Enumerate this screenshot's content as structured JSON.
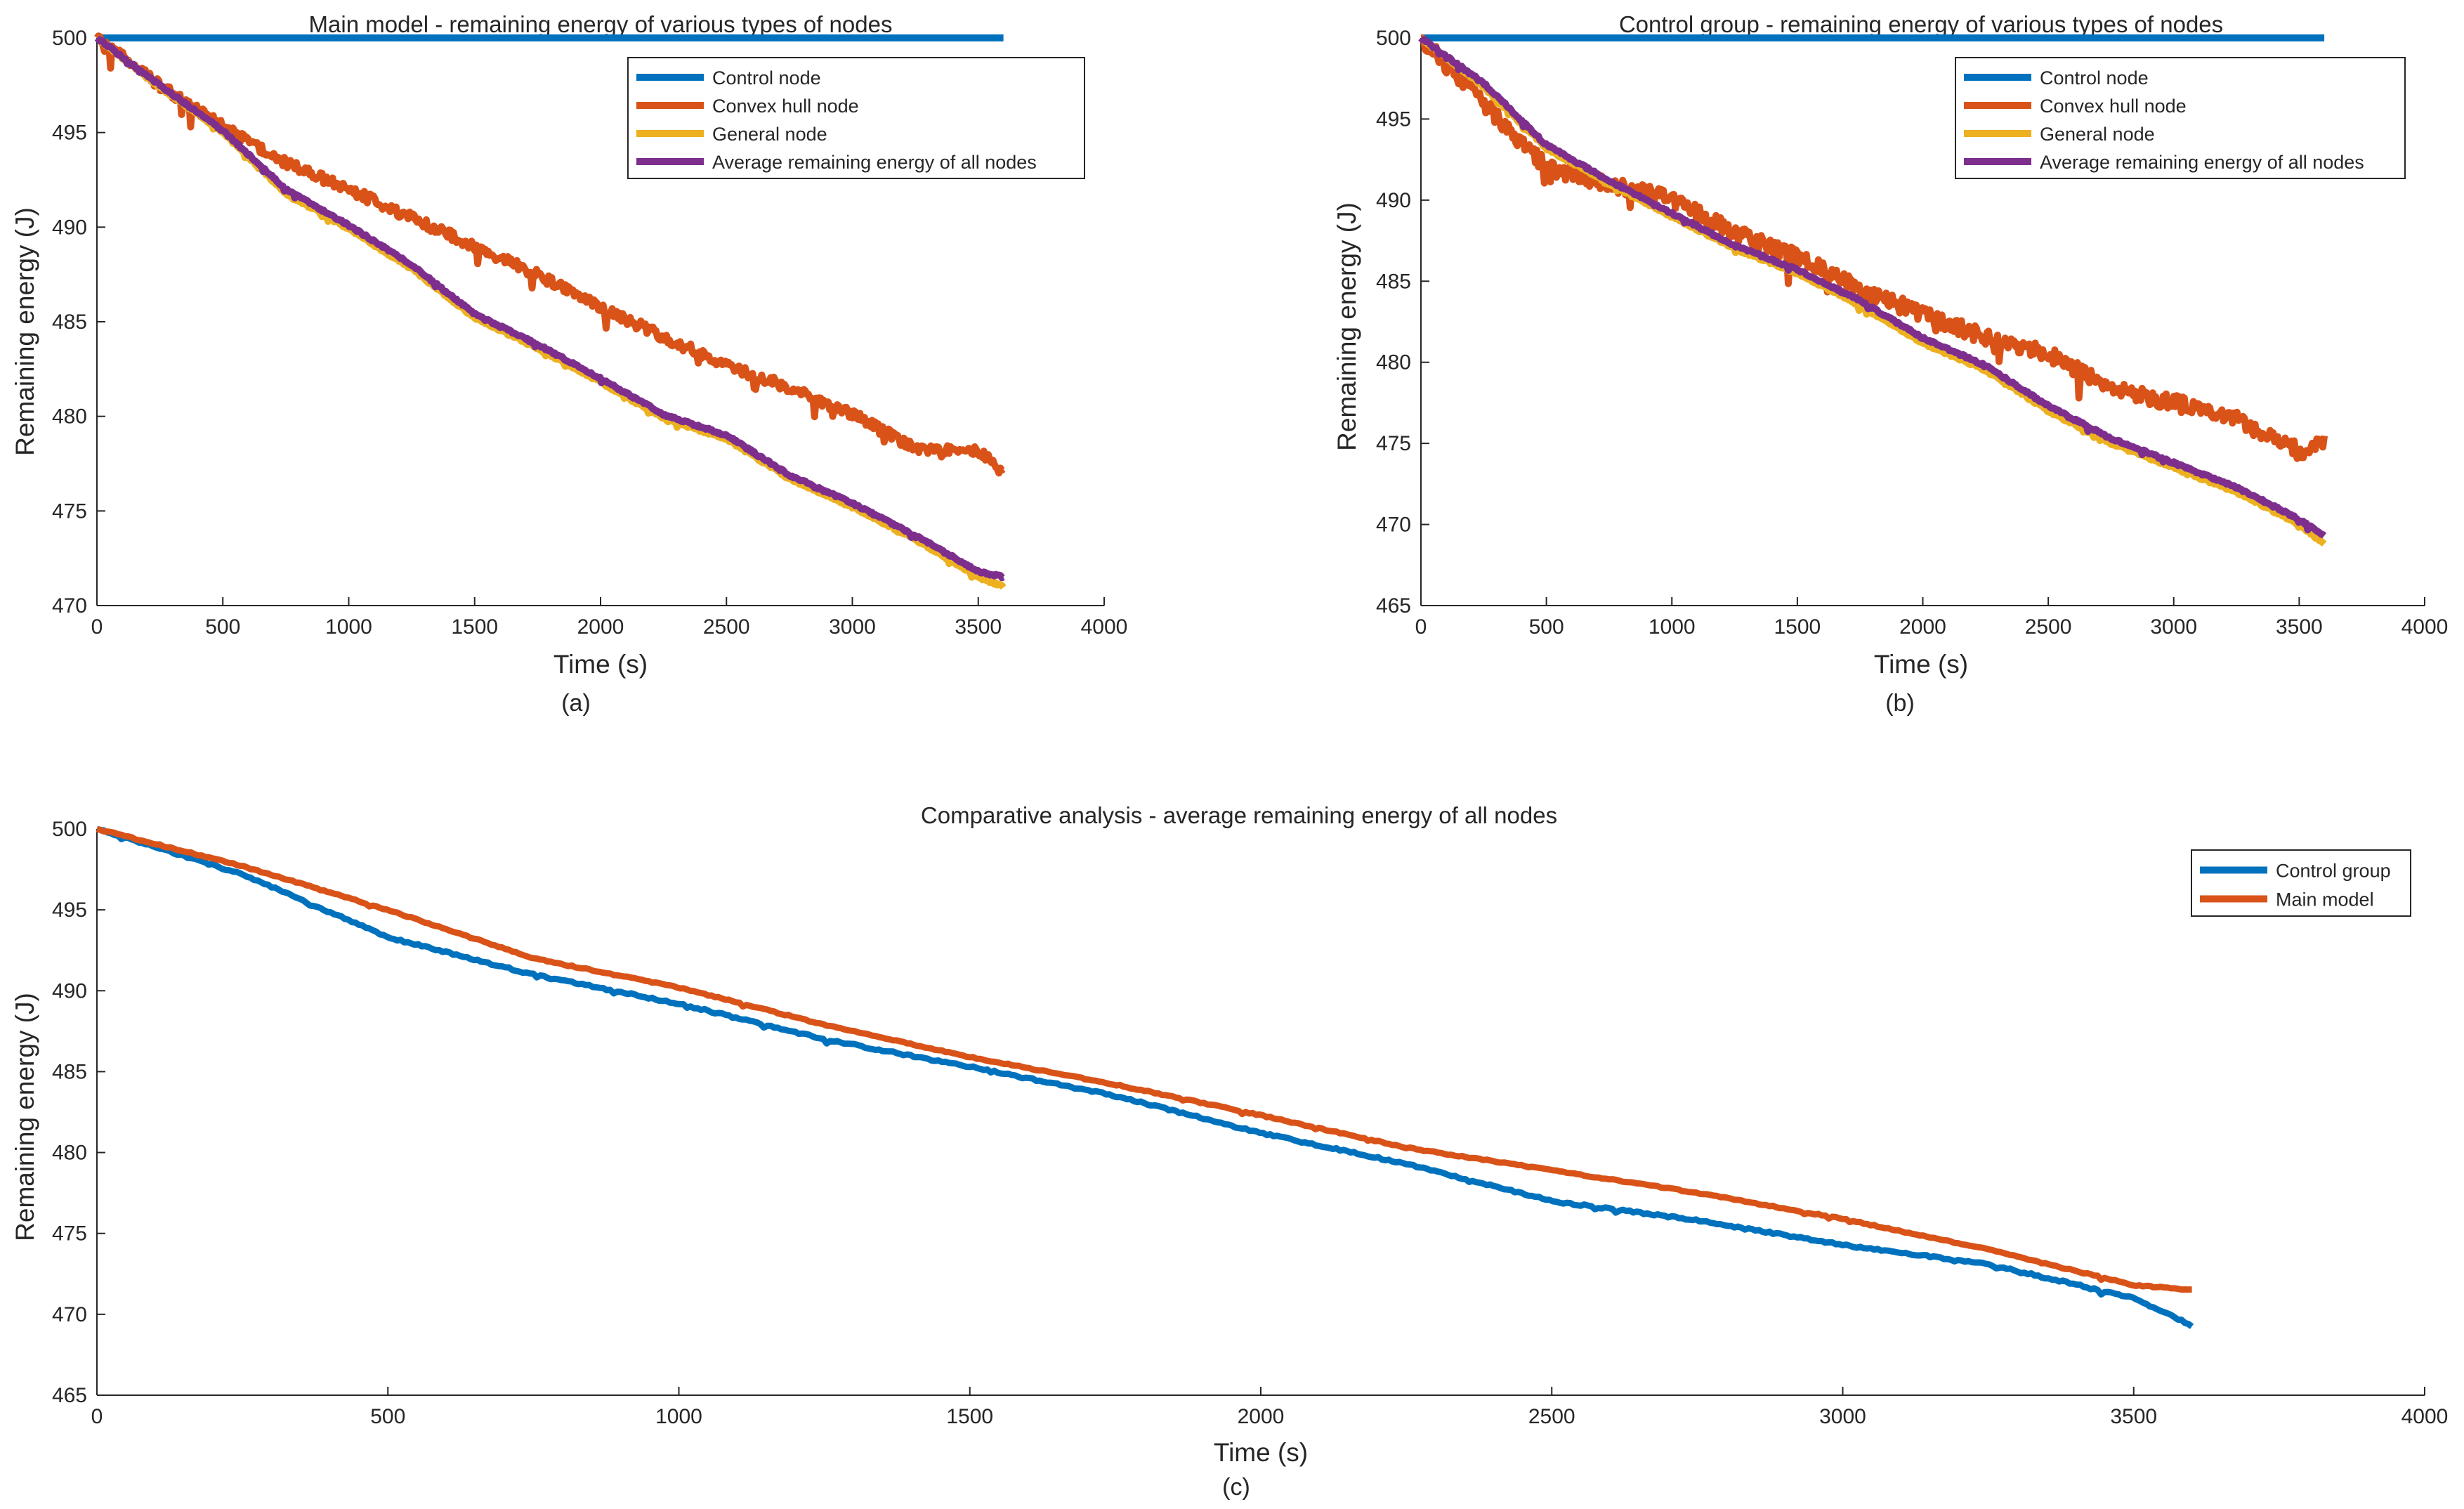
{
  "chart_data": [
    {
      "panel": "a",
      "type": "line",
      "title": "Main model - remaining energy of various types of nodes",
      "xlabel": "Time (s)",
      "ylabel": "Remaining energy (J)",
      "caption": "(a)",
      "xlim": [
        0,
        4000
      ],
      "ylim": [
        470,
        500
      ],
      "xticks": [
        0,
        500,
        1000,
        1500,
        2000,
        2500,
        3000,
        3500,
        4000
      ],
      "yticks": [
        470,
        475,
        480,
        485,
        490,
        495,
        500
      ],
      "legend_position": "top-right",
      "series": [
        {
          "name": "Control node",
          "color": "#0072BD",
          "noise": 0,
          "x": [
            0,
            3600
          ],
          "y": [
            500,
            500
          ]
        },
        {
          "name": "Convex hull node",
          "color": "#D95319",
          "noise": 0.55,
          "x": [
            0,
            250,
            500,
            750,
            1000,
            1250,
            1500,
            1750,
            2000,
            2250,
            2500,
            2750,
            3000,
            3250,
            3500,
            3600
          ],
          "y": [
            500,
            497.5,
            495.3,
            493.4,
            492.0,
            490.5,
            489.0,
            487.5,
            485.8,
            484.2,
            482.7,
            481.5,
            480.1,
            478.3,
            478.2,
            477.0
          ]
        },
        {
          "name": "General node",
          "color": "#EDB120",
          "noise": 0.12,
          "x": [
            0,
            250,
            500,
            750,
            1000,
            1250,
            1500,
            1750,
            2000,
            2250,
            2500,
            2750,
            3000,
            3250,
            3500,
            3600
          ],
          "y": [
            500,
            497.4,
            495.0,
            491.8,
            489.9,
            487.8,
            485.2,
            483.6,
            481.8,
            479.9,
            478.8,
            476.7,
            475.2,
            473.5,
            471.5,
            471.0
          ]
        },
        {
          "name": "Average remaining energy of all nodes",
          "color": "#7E2F8E",
          "noise": 0.12,
          "x": [
            0,
            250,
            500,
            750,
            1000,
            1250,
            1500,
            1750,
            2000,
            2250,
            2500,
            2750,
            3000,
            3250,
            3500,
            3600
          ],
          "y": [
            500,
            497.5,
            495.1,
            492.0,
            490.1,
            488.0,
            485.4,
            483.8,
            482.0,
            480.1,
            479.0,
            476.9,
            475.4,
            473.7,
            471.8,
            471.5
          ]
        }
      ]
    },
    {
      "panel": "b",
      "type": "line",
      "title": "Control group - remaining energy of various types of nodes",
      "xlabel": "Time (s)",
      "ylabel": "Remaining energy (J)",
      "caption": "(b)",
      "xlim": [
        0,
        4000
      ],
      "ylim": [
        465,
        500
      ],
      "xticks": [
        0,
        500,
        1000,
        1500,
        2000,
        2500,
        3000,
        3500,
        4000
      ],
      "yticks": [
        465,
        470,
        475,
        480,
        485,
        490,
        495,
        500
      ],
      "legend_position": "top-right",
      "series": [
        {
          "name": "Control node",
          "color": "#0072BD",
          "noise": 0,
          "x": [
            0,
            3600
          ],
          "y": [
            500,
            500
          ]
        },
        {
          "name": "Convex hull node",
          "color": "#D95319",
          "noise": 1.0,
          "x": [
            0,
            250,
            500,
            750,
            1000,
            1250,
            1500,
            1750,
            2000,
            2250,
            2500,
            2750,
            3000,
            3250,
            3500,
            3600
          ],
          "y": [
            500,
            496.0,
            492.0,
            491.0,
            490.0,
            488.0,
            486.5,
            484.5,
            483.0,
            481.5,
            480.5,
            478.5,
            477.5,
            476.5,
            474.5,
            475.0
          ]
        },
        {
          "name": "General node",
          "color": "#EDB120",
          "noise": 0.15,
          "x": [
            0,
            250,
            500,
            750,
            1000,
            1250,
            1500,
            1750,
            2000,
            2250,
            2500,
            2750,
            3000,
            3250,
            3500,
            3600
          ],
          "y": [
            500,
            497.0,
            493.2,
            491.0,
            489.0,
            487.0,
            485.5,
            483.5,
            481.2,
            479.5,
            477.0,
            475.0,
            473.5,
            472.0,
            470.0,
            468.8
          ]
        },
        {
          "name": "Average remaining energy of all nodes",
          "color": "#7E2F8E",
          "noise": 0.15,
          "x": [
            0,
            250,
            500,
            750,
            1000,
            1250,
            1500,
            1750,
            2000,
            2250,
            2500,
            2750,
            3000,
            3250,
            3500,
            3600
          ],
          "y": [
            500,
            497.2,
            493.4,
            491.2,
            489.2,
            487.2,
            485.7,
            483.8,
            481.5,
            479.8,
            477.3,
            475.3,
            473.8,
            472.3,
            470.3,
            469.3
          ]
        }
      ]
    },
    {
      "panel": "c",
      "type": "line",
      "title": "Comparative analysis - average remaining energy of all nodes",
      "xlabel": "Time (s)",
      "ylabel": "Remaining energy (J)",
      "caption": "(c)",
      "xlim": [
        0,
        4000
      ],
      "ylim": [
        465,
        500
      ],
      "xticks": [
        0,
        500,
        1000,
        1500,
        2000,
        2500,
        3000,
        3500,
        4000
      ],
      "yticks": [
        465,
        470,
        475,
        480,
        485,
        490,
        495,
        500
      ],
      "legend_position": "top-right",
      "series": [
        {
          "name": "Control group",
          "color": "#0072BD",
          "noise": 0.12,
          "x": [
            0,
            250,
            500,
            750,
            1000,
            1250,
            1500,
            1750,
            2000,
            2250,
            2500,
            2750,
            3000,
            3250,
            3500,
            3600
          ],
          "y": [
            500,
            497.2,
            493.3,
            491.0,
            489.2,
            487.0,
            485.3,
            483.5,
            481.2,
            479.3,
            477.0,
            475.8,
            474.3,
            473.1,
            471.0,
            469.3
          ]
        },
        {
          "name": "Main model",
          "color": "#D95319",
          "noise": 0.08,
          "x": [
            0,
            250,
            500,
            750,
            1000,
            1250,
            1500,
            1750,
            2000,
            2250,
            2500,
            2750,
            3000,
            3250,
            3500,
            3600
          ],
          "y": [
            500,
            497.7,
            495.0,
            492.0,
            490.2,
            487.9,
            485.9,
            484.2,
            482.3,
            480.3,
            478.9,
            477.5,
            475.9,
            474.0,
            471.8,
            471.5
          ]
        }
      ]
    }
  ]
}
